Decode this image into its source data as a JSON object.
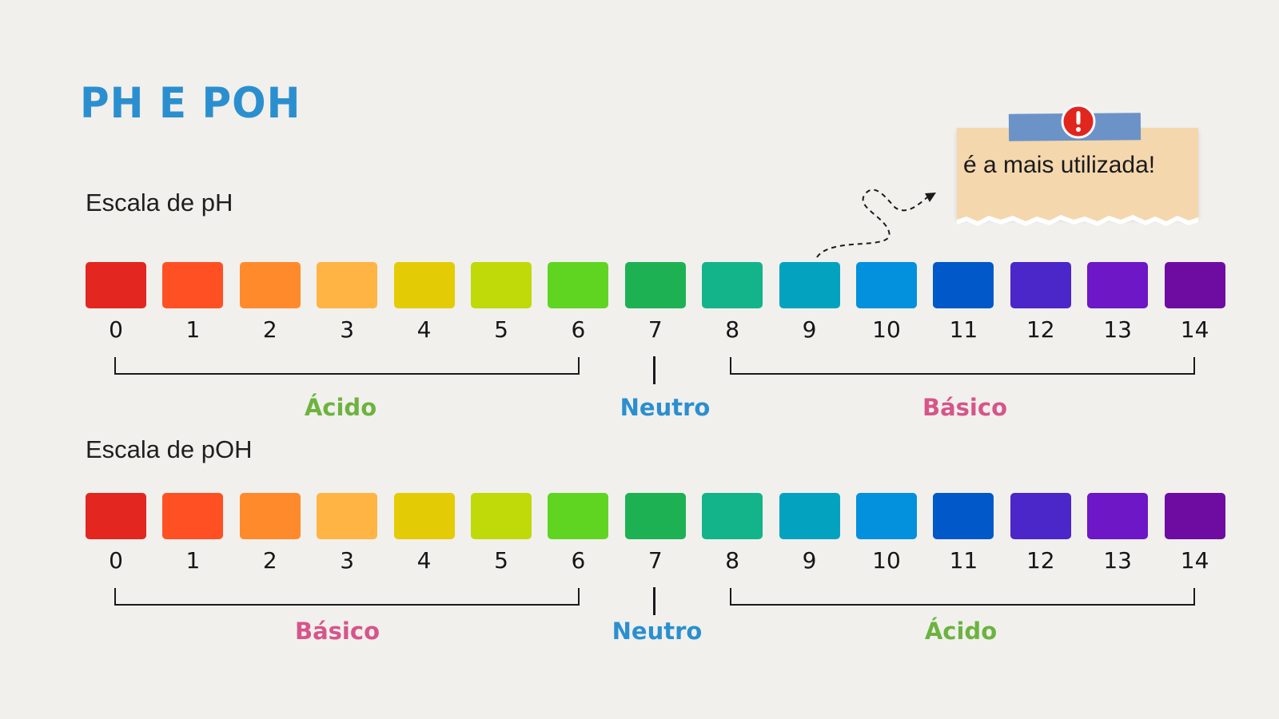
{
  "title": "PH E POH",
  "note": {
    "text": "é a mais utilizada!",
    "icon": "alert-icon",
    "tape_color": "#6b93c7",
    "paper_color": "#f4d7ad"
  },
  "colors": [
    "#e3261f",
    "#ff5024",
    "#ff8a2c",
    "#ffb443",
    "#e3cc05",
    "#c0d908",
    "#5fd522",
    "#1db154",
    "#13b48a",
    "#03a3c0",
    "#0390dc",
    "#0158c9",
    "#4b26c9",
    "#6d17c7",
    "#6e0ca2"
  ],
  "label_colors": {
    "acid": "#6cb33f",
    "neutral": "#2b8fcf",
    "basic": "#d6558a"
  },
  "ph": {
    "label": "Escala de pH",
    "numbers": [
      "0",
      "1",
      "2",
      "3",
      "4",
      "5",
      "6",
      "7",
      "8",
      "9",
      "10",
      "11",
      "12",
      "13",
      "14"
    ],
    "left_label": "Ácido",
    "middle_label": "Neutro",
    "right_label": "Básico"
  },
  "poh": {
    "label": "Escala de pOH",
    "numbers": [
      "0",
      "1",
      "2",
      "3",
      "4",
      "5",
      "6",
      "7",
      "8",
      "9",
      "10",
      "11",
      "12",
      "13",
      "14"
    ],
    "left_label": "Básico",
    "middle_label": "Neutro",
    "right_label": "Ácido"
  }
}
